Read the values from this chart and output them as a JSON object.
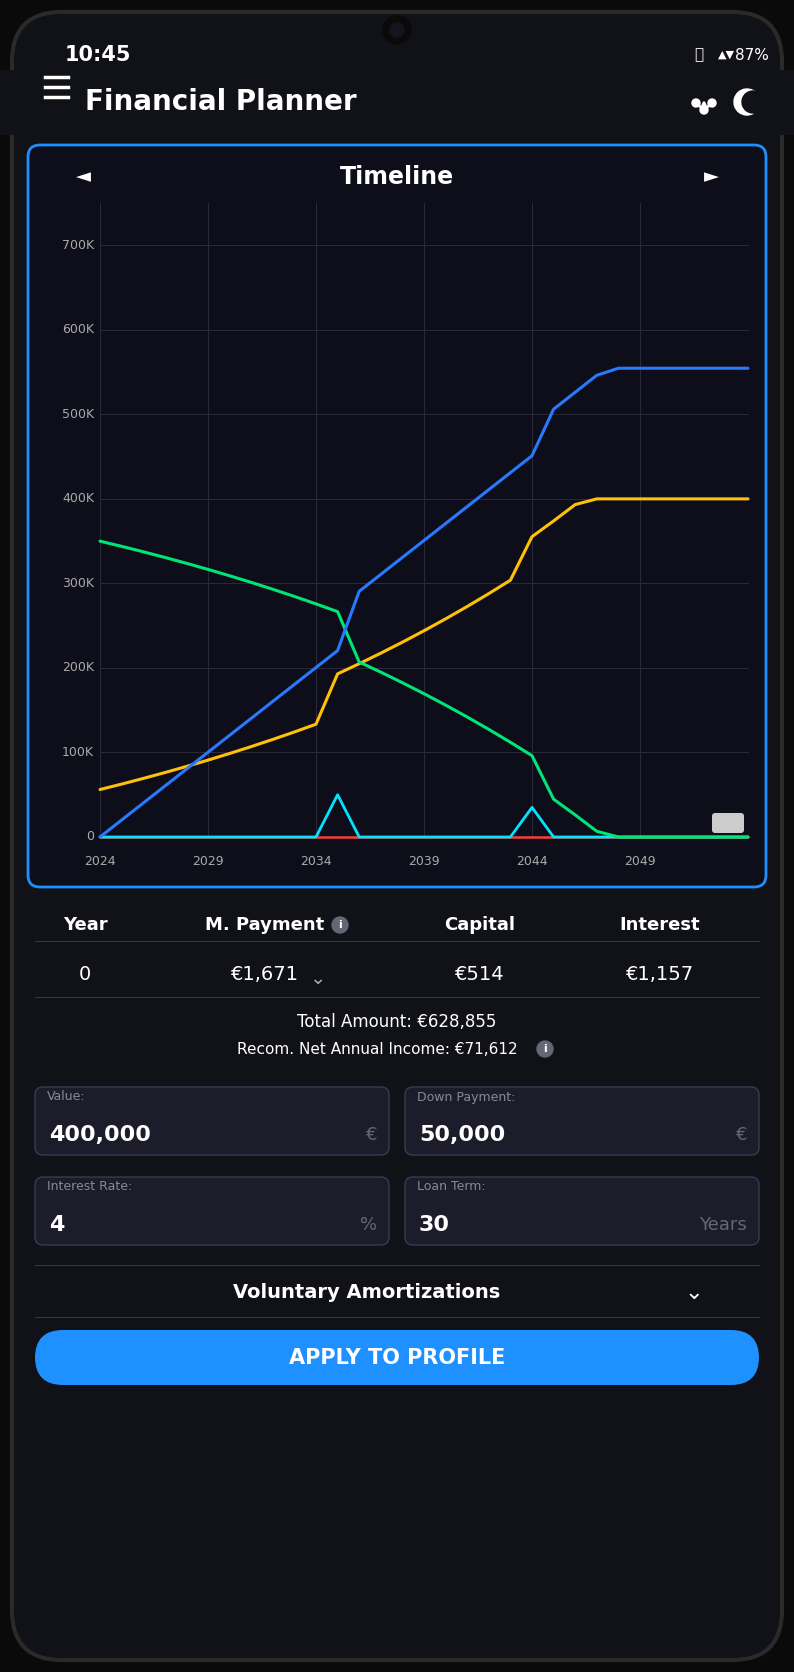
{
  "bg_color": "#111118",
  "phone_bg": "#0a0a0a",
  "chart_bg": "#111118",
  "title": "Timeline",
  "status_time": "10:45",
  "status_battery": "87%",
  "app_title": "Financial Planner",
  "chart_border_color": "#1e90ff",
  "y_ticks": [
    0,
    100000,
    200000,
    300000,
    400000,
    500000,
    600000,
    700000
  ],
  "y_tick_labels": [
    "0",
    "100K",
    "200K",
    "300K",
    "400K",
    "500K",
    "600K",
    "700K"
  ],
  "line_blue_color": "#2979ff",
  "line_green_color": "#00e676",
  "line_yellow_color": "#ffc107",
  "line_red_color": "#f44336",
  "line_cyan_color": "#00e5ff",
  "table_headers": [
    "Year",
    "M. Payment",
    "Capital",
    "Interest"
  ],
  "table_row": [
    "0",
    "€1,671",
    "€514",
    "€1,157"
  ],
  "total_amount": "Total Amount: €628,855",
  "recom_income": "Recom. Net Annual Income: €71,612",
  "value_label": "Value:",
  "value_amount": "400,000",
  "value_unit": "€",
  "down_label": "Down Payment:",
  "down_amount": "50,000",
  "down_unit": "€",
  "rate_label": "Interest Rate:",
  "rate_value": "4",
  "rate_unit": "%",
  "term_label": "Loan Term:",
  "term_value": "30",
  "term_unit": "Years",
  "amort_label": "Voluntary Amortizations",
  "apply_btn": "APPLY TO PROFILE",
  "apply_btn_color": "#1e90ff"
}
